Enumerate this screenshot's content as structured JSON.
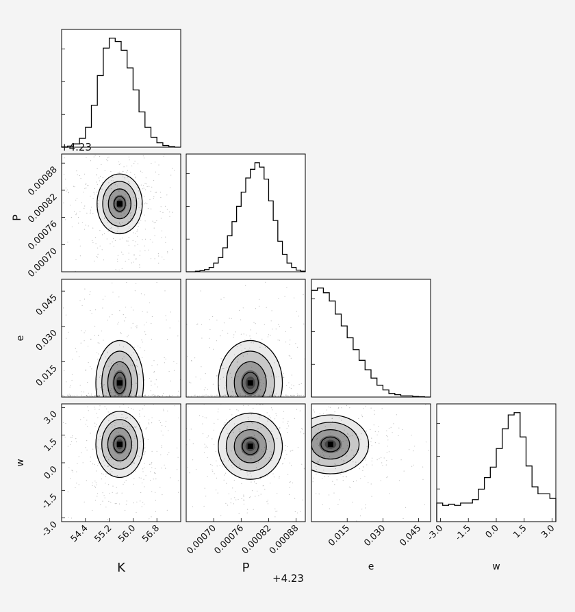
{
  "chart_data": {
    "type": "corner",
    "parameters": [
      "K",
      "P",
      "e",
      "w"
    ],
    "axis_labels": {
      "K": "K",
      "P": "P",
      "e": "e",
      "w": "w"
    },
    "offset_labels": {
      "K_hist": "+4.23",
      "P_xaxis": "+4.23"
    },
    "ranges": {
      "K": [
        53.6,
        57.6
      ],
      "P": [
        0.00064,
        0.0009
      ],
      "e": [
        0.0,
        0.05
      ],
      "w": [
        -3.2,
        3.2
      ]
    },
    "ticks": {
      "K": {
        "values": [
          54.4,
          55.2,
          56.0,
          56.8
        ],
        "labels": [
          "54.4",
          "55.2",
          "56.0",
          "56.8"
        ]
      },
      "P": {
        "values": [
          0.0007,
          0.00076,
          0.00082,
          0.00088
        ],
        "labels": [
          "0.00070",
          "0.00076",
          "0.00082",
          "0.00088"
        ]
      },
      "e": {
        "values": [
          0.015,
          0.03,
          0.045
        ],
        "labels": [
          "0.015",
          "0.030",
          "0.045"
        ]
      },
      "w": {
        "values": [
          -3.0,
          -1.5,
          0.0,
          1.5,
          3.0
        ],
        "labels": [
          "-3.0",
          "-1.5",
          "0.0",
          "1.5",
          "3.0"
        ]
      }
    },
    "histograms": {
      "K": {
        "edges": [
          53.6,
          53.8,
          54.0,
          54.2,
          54.4,
          54.6,
          54.8,
          55.0,
          55.2,
          55.4,
          55.6,
          55.8,
          56.0,
          56.2,
          56.4,
          56.6,
          56.8,
          57.0,
          57.2,
          57.4,
          57.6
        ],
        "counts": [
          0.3,
          1,
          3,
          8,
          18,
          38,
          65,
          90,
          99,
          96,
          88,
          72,
          52,
          32,
          18,
          9,
          4,
          1.5,
          0.5,
          0
        ]
      },
      "P": {
        "edges": [
          0.00064,
          0.00065,
          0.00066,
          0.00067,
          0.00068,
          0.00069,
          0.0007,
          0.00071,
          0.00072,
          0.00073,
          0.00074,
          0.00075,
          0.00076,
          0.00077,
          0.00078,
          0.00079,
          0.0008,
          0.00081,
          0.00082,
          0.00083,
          0.00084,
          0.00085,
          0.00086,
          0.00087,
          0.00088,
          0.00089,
          0.0009
        ],
        "counts": [
          0,
          0,
          0.5,
          1,
          2,
          4,
          8,
          13,
          22,
          33,
          46,
          60,
          73,
          86,
          94,
          100,
          96,
          85,
          65,
          47,
          28,
          16,
          8,
          4,
          1.5,
          0.5
        ]
      },
      "e": {
        "edges": [
          0.0,
          0.0025,
          0.005,
          0.0075,
          0.01,
          0.0125,
          0.015,
          0.0175,
          0.02,
          0.0225,
          0.025,
          0.0275,
          0.03,
          0.0325,
          0.035,
          0.0375,
          0.04,
          0.0425,
          0.045,
          0.0475,
          0.05
        ],
        "counts": [
          90,
          92,
          88,
          81,
          70,
          60,
          50,
          40,
          31,
          23,
          16,
          10,
          6,
          3,
          2,
          1,
          1,
          0.5,
          0.3,
          0
        ]
      },
      "w": {
        "edges": [
          -3.2,
          -2.88,
          -2.56,
          -2.24,
          -1.92,
          -1.6,
          -1.28,
          -0.96,
          -0.64,
          -0.32,
          0.0,
          0.32,
          0.64,
          0.96,
          1.28,
          1.6,
          1.92,
          2.24,
          2.56,
          2.88,
          3.2
        ],
        "counts": [
          16,
          14,
          15,
          14,
          16,
          16,
          19,
          28,
          38,
          47,
          63,
          80,
          92,
          94,
          73,
          48,
          30,
          24,
          24,
          20
        ]
      }
    },
    "joint": [
      {
        "x": "K",
        "y": "P",
        "mean": [
          55.55,
          0.00079
        ],
        "sd": [
          0.38,
          3.3e-05
        ],
        "rho": 0.0,
        "clip_y_below": null
      },
      {
        "x": "K",
        "y": "e",
        "mean": [
          55.55,
          0.006
        ],
        "sd": [
          0.4,
          0.009
        ],
        "rho": 0.0,
        "clip_y_below": 0.0
      },
      {
        "x": "P",
        "y": "e",
        "mean": [
          0.00078,
          0.006
        ],
        "sd": [
          3.5e-05,
          0.009
        ],
        "rho": 0.0,
        "clip_y_below": 0.0
      },
      {
        "x": "K",
        "y": "w",
        "mean": [
          55.55,
          1.0
        ],
        "sd": [
          0.4,
          0.9
        ],
        "rho": 0.0,
        "clip_y_below": null
      },
      {
        "x": "P",
        "y": "w",
        "mean": [
          0.00078,
          0.9
        ],
        "sd": [
          3.5e-05,
          0.9
        ],
        "rho": 0.0,
        "clip_y_below": null
      },
      {
        "x": "e",
        "y": "w",
        "mean": [
          0.008,
          1.0
        ],
        "sd": [
          0.008,
          0.8
        ],
        "rho": 0.0,
        "clip_y_below": null
      }
    ],
    "contour_levels_sigma": [
      0.5,
      1.0,
      1.5,
      2.0
    ],
    "title": "",
    "colors": {
      "line": "#000000",
      "fill": "#333333",
      "background": "#f4f4f4",
      "panel": "#ffffff"
    }
  }
}
